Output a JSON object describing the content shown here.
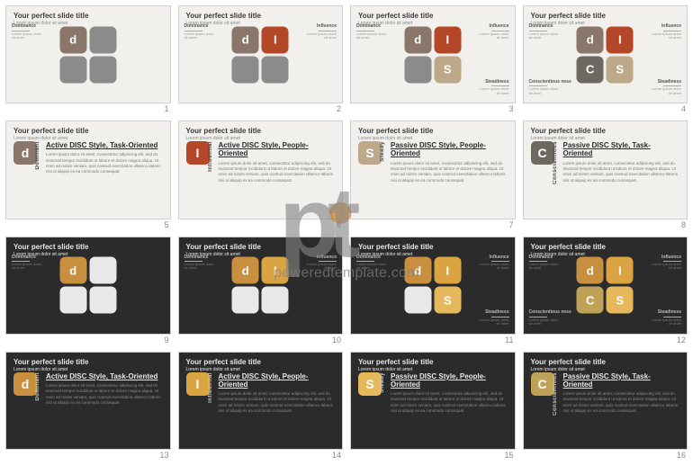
{
  "meta": {
    "slide_title": "Your perfect slide title",
    "slide_subtitle": "Lorem ipsum dolor sit amet",
    "lorem_short": "Lorem ipsum dolor sit amet",
    "lorem_block": "Lorem ipsum dolor sit amet, consectetur adipiscing elit, sed do eiusmod tempor incididunt ut labore et dolore magna aliqua. Ut enim ad minim veniam, quis nostrud exercitation ullamco laboris nisi ut aliquip ex ea commodo consequat."
  },
  "watermark": {
    "p": "p",
    "t": "t",
    "text": "poweredtemplate.com",
    "accent_color": "#d38124"
  },
  "labels": {
    "dominance": "Dominance",
    "influence": "Influence",
    "conscientiousness": "Conscientious\nness",
    "steadiness": "Steadiness",
    "dominant": "Dominant",
    "influential": "Influential",
    "steady": "Steady",
    "conscientious": "Conscientious"
  },
  "headings": {
    "active_task": "Active DISC Style, Task-Oriented",
    "active_people": "Active DISC Style, People-Oriented",
    "passive_people": "Passive DISC Style, People-Oriented",
    "passive_task": "Passive DISC Style, Task-Oriented"
  },
  "letters": {
    "d": "d",
    "I": "I",
    "S": "S",
    "C": "C"
  },
  "palettes": {
    "light": {
      "bg": "#f2f0ec",
      "gray": "#8b8b8b",
      "lightgray": "#b9b8b6",
      "d": "#8a766a",
      "I": "#b34728",
      "S": "#bda98a",
      "C": "#6d6961"
    },
    "dark": {
      "bg": "#2b2b2b",
      "gray": "#e8e8e8",
      "d": "#c88f3f",
      "I": "#d9a441",
      "S": "#e6b85c",
      "C": "#bfa255"
    }
  },
  "slides": [
    {
      "n": 1,
      "theme": "light",
      "type": "quad1"
    },
    {
      "n": 2,
      "theme": "light",
      "type": "quad2"
    },
    {
      "n": 3,
      "theme": "light",
      "type": "quad3"
    },
    {
      "n": 4,
      "theme": "light",
      "type": "quad4"
    },
    {
      "n": 5,
      "theme": "light",
      "type": "detail",
      "letter": "d",
      "vlabel": "dominant",
      "heading": "active_task"
    },
    {
      "n": 6,
      "theme": "light",
      "type": "detail",
      "letter": "I",
      "vlabel": "influential",
      "heading": "active_people"
    },
    {
      "n": 7,
      "theme": "light",
      "type": "detail",
      "letter": "S",
      "vlabel": "steady",
      "heading": "passive_people"
    },
    {
      "n": 8,
      "theme": "light",
      "type": "detail",
      "letter": "C",
      "vlabel": "conscientious",
      "heading": "passive_task"
    },
    {
      "n": 9,
      "theme": "dark",
      "type": "quad1"
    },
    {
      "n": 10,
      "theme": "dark",
      "type": "quad2"
    },
    {
      "n": 11,
      "theme": "dark",
      "type": "quad3"
    },
    {
      "n": 12,
      "theme": "dark",
      "type": "quad4"
    },
    {
      "n": 13,
      "theme": "dark",
      "type": "detail",
      "letter": "d",
      "vlabel": "dominant",
      "heading": "active_task"
    },
    {
      "n": 14,
      "theme": "dark",
      "type": "detail",
      "letter": "I",
      "vlabel": "influential",
      "heading": "active_people"
    },
    {
      "n": 15,
      "theme": "dark",
      "type": "detail",
      "letter": "S",
      "vlabel": "steady",
      "heading": "passive_people"
    },
    {
      "n": 16,
      "theme": "dark",
      "type": "detail",
      "letter": "C",
      "vlabel": "conscientious",
      "heading": "passive_task"
    }
  ],
  "quad_variants": {
    "quad1": {
      "labels": [
        "TL"
      ],
      "squares": [
        {
          "letter": "d",
          "pos": "TL",
          "colored": true
        },
        {
          "letter": "",
          "pos": "TR",
          "colored": false
        },
        {
          "letter": "",
          "pos": "BL",
          "colored": false
        },
        {
          "letter": "",
          "pos": "BR",
          "colored": false
        }
      ]
    },
    "quad2": {
      "labels": [
        "TL",
        "TR"
      ],
      "squares": [
        {
          "letter": "d",
          "pos": "TL",
          "colored": true
        },
        {
          "letter": "I",
          "pos": "TR",
          "colored": true
        },
        {
          "letter": "",
          "pos": "BL",
          "colored": false
        },
        {
          "letter": "",
          "pos": "BR",
          "colored": false
        }
      ]
    },
    "quad3": {
      "labels": [
        "TL",
        "TR",
        "BR"
      ],
      "squares": [
        {
          "letter": "d",
          "pos": "TL",
          "colored": true
        },
        {
          "letter": "I",
          "pos": "TR",
          "colored": true
        },
        {
          "letter": "",
          "pos": "BL",
          "colored": false
        },
        {
          "letter": "S",
          "pos": "BR",
          "colored": true
        }
      ]
    },
    "quad4": {
      "labels": [
        "TL",
        "TR",
        "BL",
        "BR"
      ],
      "squares": [
        {
          "letter": "d",
          "pos": "TL",
          "colored": true
        },
        {
          "letter": "I",
          "pos": "TR",
          "colored": true
        },
        {
          "letter": "C",
          "pos": "BL",
          "colored": true
        },
        {
          "letter": "S",
          "pos": "BR",
          "colored": true
        }
      ]
    }
  },
  "quad_label_map": {
    "TL": "dominance",
    "TR": "influence",
    "BL": "conscientiousness",
    "BR": "steadiness"
  }
}
